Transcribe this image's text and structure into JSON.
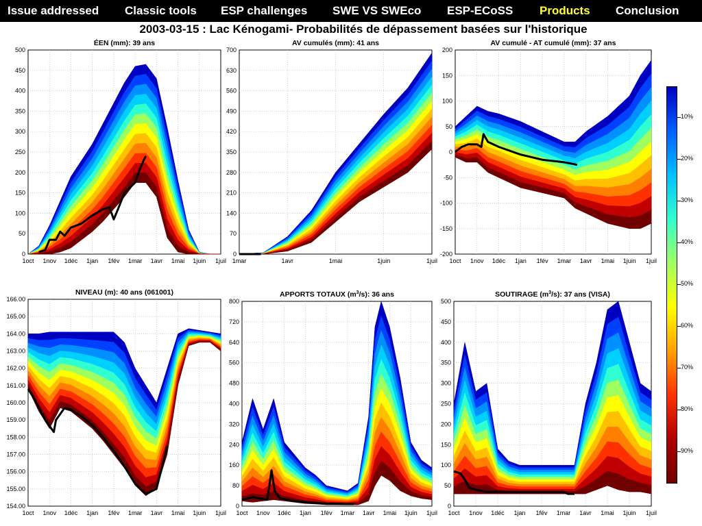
{
  "nav": {
    "items": [
      {
        "label": "Issue addressed",
        "active": false
      },
      {
        "label": "Classic tools",
        "active": false
      },
      {
        "label": "ESP challenges",
        "active": false
      },
      {
        "label": "SWE VS SWEco",
        "active": false
      },
      {
        "label": "ESP-ECoSS",
        "active": false
      },
      {
        "label": "Products",
        "active": true
      },
      {
        "label": "Conclusion",
        "active": false
      }
    ],
    "active_color": "#ffff33"
  },
  "title": "2003-03-15 : Lac Kénogami- Probabilités de dépassement basées sur l'historique",
  "colorbar": {
    "labels": [
      "10%",
      "20%",
      "30%",
      "40%",
      "50%",
      "60%",
      "70%",
      "80%",
      "90%"
    ],
    "colors": [
      "#0000c0",
      "#0060ff",
      "#00c0ff",
      "#30ffd0",
      "#a0ff60",
      "#ffff00",
      "#ffa000",
      "#ff3000",
      "#b00000",
      "#700000"
    ]
  },
  "chart_data": [
    {
      "type": "area",
      "title": "ÉEN (mm): 39 ans",
      "x_ticks": [
        "1oct",
        "1nov",
        "1déc",
        "1jan",
        "1fév",
        "1mar",
        "1avr",
        "1mai",
        "1juin",
        "1juil"
      ],
      "ylim": [
        0,
        500
      ],
      "y_ticks": [
        "0",
        "50",
        "100",
        "150",
        "200",
        "250",
        "300",
        "350",
        "400",
        "450",
        "500"
      ],
      "envelope": {
        "x": [
          0,
          0.5,
          1,
          1.5,
          2,
          2.5,
          3,
          3.5,
          4,
          4.5,
          5,
          5.5,
          6,
          6.5,
          7,
          7.5,
          8,
          8.5,
          9
        ],
        "upper": [
          0,
          20,
          70,
          130,
          190,
          230,
          270,
          320,
          370,
          420,
          460,
          465,
          430,
          310,
          180,
          60,
          5,
          0,
          0
        ],
        "lower": [
          0,
          0,
          0,
          5,
          15,
          35,
          55,
          80,
          110,
          140,
          175,
          175,
          140,
          40,
          5,
          0,
          0,
          0,
          0
        ]
      },
      "median": {
        "x": [
          0,
          0.5,
          1,
          1.5,
          2,
          2.5,
          3,
          3.5,
          4,
          4.5,
          5,
          5.5,
          6,
          6.5,
          7,
          7.5,
          8,
          8.5,
          9
        ],
        "y": [
          0,
          5,
          20,
          50,
          90,
          120,
          140,
          175,
          210,
          250,
          280,
          265,
          200,
          90,
          20,
          0,
          0,
          0,
          0
        ]
      },
      "observed": {
        "x": [
          0.5,
          0.8,
          1.0,
          1.3,
          1.5,
          1.7,
          2.0,
          2.5,
          3.0,
          3.5,
          3.8,
          4.0,
          4.2,
          4.5,
          5.0,
          5.2,
          5.4,
          5.5
        ],
        "y": [
          5,
          10,
          35,
          35,
          55,
          45,
          65,
          75,
          95,
          110,
          115,
          85,
          110,
          150,
          175,
          205,
          230,
          240
        ]
      }
    },
    {
      "type": "area",
      "title": "AV cumulés (mm): 41 ans",
      "x_ticks": [
        "1mar",
        "1avr",
        "1mai",
        "1juin",
        "1juil"
      ],
      "ylim": [
        0,
        700
      ],
      "y_ticks": [
        "0",
        "70",
        "140",
        "210",
        "280",
        "350",
        "420",
        "490",
        "560",
        "630",
        "700"
      ],
      "envelope": {
        "x": [
          0,
          0.5,
          1,
          1.5,
          2,
          2.5,
          3,
          3.5,
          4
        ],
        "upper": [
          0,
          5,
          60,
          150,
          280,
          380,
          480,
          570,
          690
        ],
        "lower": [
          0,
          0,
          10,
          40,
          110,
          180,
          230,
          280,
          360
        ]
      },
      "median": {
        "x": [
          0,
          0.5,
          1,
          1.5,
          2,
          2.5,
          3,
          3.5,
          4
        ],
        "y": [
          0,
          2,
          30,
          90,
          190,
          270,
          340,
          410,
          480
        ]
      },
      "observed": {
        "x": [
          0,
          0.45
        ],
        "y": [
          0,
          0
        ]
      }
    },
    {
      "type": "area",
      "title": "AV cumulé - AT cumulé (mm): 37 ans",
      "x_ticks": [
        "1oct",
        "1nov",
        "1déc",
        "1jan",
        "1fév",
        "1mar",
        "1avr",
        "1mai",
        "1juin",
        "1juil"
      ],
      "ylim": [
        -200,
        200
      ],
      "y_ticks": [
        "-200",
        "-150",
        "-100",
        "-50",
        "0",
        "50",
        "100",
        "150",
        "200"
      ],
      "envelope": {
        "x": [
          0,
          0.5,
          1,
          1.5,
          2,
          3,
          4,
          5,
          5.5,
          6,
          7,
          8,
          8.5,
          9
        ],
        "upper": [
          50,
          70,
          90,
          80,
          75,
          60,
          40,
          20,
          20,
          40,
          70,
          110,
          150,
          180
        ],
        "lower": [
          -10,
          -20,
          -20,
          -40,
          -50,
          -70,
          -80,
          -90,
          -110,
          -120,
          -140,
          -150,
          -150,
          -140
        ]
      },
      "median": {
        "x": [
          0,
          1,
          2,
          3,
          4,
          5,
          6,
          7,
          8,
          9
        ],
        "y": [
          20,
          30,
          15,
          0,
          -10,
          -20,
          -20,
          -10,
          10,
          30
        ]
      },
      "observed": {
        "x": [
          0,
          0.3,
          0.6,
          1.0,
          1.2,
          1.3,
          1.5,
          2,
          3,
          4,
          5,
          5.6
        ],
        "y": [
          0,
          10,
          15,
          15,
          10,
          35,
          20,
          10,
          -5,
          -15,
          -20,
          -25
        ]
      }
    },
    {
      "type": "area",
      "title": "NIVEAU (m): 40 ans (061001)",
      "x_ticks": [
        "1oct",
        "1nov",
        "1déc",
        "1jan",
        "1fév",
        "1mar",
        "1avr",
        "1mai",
        "1juin",
        "1juil"
      ],
      "ylim": [
        154,
        166
      ],
      "y_ticks": [
        "154.00",
        "155.00",
        "156.00",
        "157.00",
        "158.00",
        "159.00",
        "160.00",
        "161.00",
        "162.00",
        "163.00",
        "164.00",
        "165.00",
        "166.00"
      ],
      "envelope": {
        "x": [
          0,
          0.5,
          1,
          1.5,
          2,
          2.5,
          3,
          3.5,
          4,
          4.5,
          5,
          5.5,
          6,
          6.5,
          7,
          7.5,
          8,
          8.5,
          9
        ],
        "upper": [
          164.0,
          164.0,
          164.1,
          164.1,
          164.1,
          164.1,
          164.1,
          164.1,
          164.1,
          163.5,
          162.0,
          161.0,
          160.0,
          162.0,
          164.0,
          164.3,
          164.2,
          164.1,
          164.0
        ],
        "lower": [
          160.8,
          159.5,
          158.5,
          159.7,
          159.5,
          159.0,
          158.5,
          157.8,
          157.0,
          156.2,
          155.2,
          154.6,
          155.0,
          157.0,
          161.0,
          163.3,
          163.5,
          163.5,
          163.0
        ]
      },
      "median": {
        "x": [
          0,
          0.5,
          1,
          1.5,
          2,
          2.5,
          3,
          3.5,
          4,
          4.5,
          5,
          5.5,
          6,
          6.5,
          7,
          7.5,
          8,
          8.5,
          9
        ],
        "y": [
          163.2,
          162.8,
          162.5,
          162.3,
          162.0,
          161.6,
          161.2,
          160.6,
          160.0,
          159.3,
          158.5,
          157.6,
          157.2,
          159.0,
          162.5,
          163.8,
          163.9,
          163.8,
          163.6
        ]
      },
      "observed": {
        "x": [
          0,
          0.3,
          0.8,
          1.2,
          1.3,
          1.7,
          2,
          2.5,
          3,
          3.5,
          4,
          4.5,
          5,
          5.5,
          6,
          6.2,
          6.5
        ],
        "y": [
          160.8,
          160.2,
          159.0,
          158.3,
          159.0,
          159.7,
          159.6,
          159.2,
          158.7,
          158.0,
          157.2,
          156.3,
          155.3,
          154.7,
          155.0,
          156.0,
          157.5
        ]
      }
    },
    {
      "type": "area",
      "title": "APPORTS TOTAUX (m³/s): 36 ans",
      "title_main": "APPORTS TOTAUX (m",
      "title_sup": "3",
      "title_tail": "/s): 36 ans",
      "x_ticks": [
        "1oct",
        "1nov",
        "1déc",
        "1jan",
        "1fév",
        "1mar",
        "1avr",
        "1mai",
        "1juin",
        "1juil"
      ],
      "ylim": [
        0,
        800
      ],
      "y_ticks": [
        "0",
        "80",
        "160",
        "240",
        "320",
        "400",
        "480",
        "560",
        "640",
        "720",
        "800"
      ],
      "envelope": {
        "x": [
          0,
          0.5,
          1,
          1.5,
          2,
          2.5,
          3,
          3.5,
          4,
          4.5,
          5,
          5.5,
          6,
          6.3,
          6.6,
          7,
          7.5,
          8,
          8.5,
          9
        ],
        "upper": [
          250,
          420,
          300,
          420,
          250,
          200,
          150,
          120,
          80,
          70,
          60,
          90,
          350,
          700,
          800,
          700,
          500,
          250,
          180,
          150
        ],
        "lower": [
          20,
          15,
          20,
          25,
          20,
          15,
          10,
          8,
          5,
          5,
          5,
          5,
          20,
          80,
          120,
          100,
          60,
          40,
          30,
          25
        ]
      },
      "median": {
        "x": [
          0,
          0.5,
          1,
          1.5,
          2,
          2.5,
          3,
          3.5,
          4,
          4.5,
          5,
          5.5,
          6,
          6.5,
          7,
          7.5,
          8,
          8.5,
          9
        ],
        "y": [
          60,
          70,
          80,
          90,
          60,
          45,
          30,
          25,
          15,
          15,
          12,
          12,
          50,
          200,
          260,
          180,
          100,
          70,
          55
        ]
      },
      "observed": {
        "x": [
          0,
          0.5,
          1.2,
          1.4,
          1.55,
          1.8,
          2.5,
          3,
          4,
          5,
          5.3
        ],
        "y": [
          25,
          35,
          25,
          140,
          60,
          30,
          20,
          15,
          10,
          8,
          8
        ]
      }
    },
    {
      "type": "area",
      "title": "SOUTIRAGE (m³/s): 37 ans (VISA)",
      "title_main": "SOUTIRAGE (m",
      "title_sup": "3",
      "title_tail": "/s): 37 ans (VISA)",
      "x_ticks": [
        "1oct",
        "1nov",
        "1déc",
        "1jan",
        "1fév",
        "1mar",
        "1avr",
        "1mai",
        "1juin",
        "1juil"
      ],
      "ylim": [
        0,
        500
      ],
      "y_ticks": [
        "0",
        "50",
        "100",
        "150",
        "200",
        "250",
        "300",
        "350",
        "400",
        "450",
        "500"
      ],
      "envelope": {
        "x": [
          0,
          0.5,
          1,
          1.5,
          2,
          2.5,
          3,
          3.5,
          4,
          4.5,
          5,
          5.5,
          6,
          6.5,
          7,
          7.5,
          8,
          8.5,
          9
        ],
        "upper": [
          250,
          400,
          280,
          300,
          140,
          110,
          100,
          100,
          100,
          100,
          100,
          100,
          250,
          350,
          480,
          500,
          400,
          300,
          280
        ],
        "lower": [
          30,
          30,
          30,
          30,
          30,
          30,
          30,
          30,
          30,
          30,
          30,
          30,
          30,
          40,
          50,
          40,
          35,
          35,
          30
        ]
      },
      "median": {
        "x": [
          0,
          0.5,
          1,
          1.5,
          2,
          2.5,
          3,
          3.5,
          4,
          4.5,
          5,
          5.5,
          6,
          6.5,
          7,
          7.5,
          8,
          8.5,
          9
        ],
        "y": [
          70,
          65,
          60,
          55,
          50,
          50,
          50,
          50,
          50,
          50,
          50,
          55,
          80,
          110,
          120,
          100,
          80,
          70,
          65
        ]
      },
      "observed": {
        "x": [
          0,
          0.3,
          0.5,
          0.7,
          1,
          1.5,
          2,
          3,
          4,
          5,
          5.2,
          5.5
        ],
        "y": [
          85,
          80,
          65,
          45,
          40,
          35,
          35,
          35,
          35,
          35,
          30,
          30
        ]
      }
    }
  ]
}
